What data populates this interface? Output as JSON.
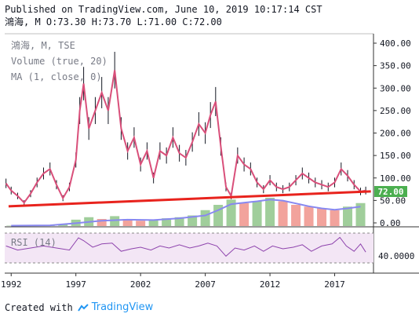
{
  "header": {
    "published": "Published on TradingView.com, June 10, 2019 10:17:14 CST",
    "ohlc": "鴻海, M O:73.30 H:73.70 L:71.00 C:72.00"
  },
  "legend": {
    "symbol": "鴻海, M, TSE",
    "volume": "Volume (true, 20)",
    "ma": "MA (1, close, 0)",
    "rsi": "RSI (14)"
  },
  "footer": {
    "created_with": "Created with",
    "brand": "TradingView"
  },
  "colors": {
    "candle_body": "#d94f7a",
    "candle_wick": "#131722",
    "trendline": "#e8231d",
    "volume_up": "#8fc58a",
    "volume_down": "#f0938b",
    "volume_ma": "#8888f0",
    "rsi_line": "#8e44ad",
    "rsi_band": "#f3e6f5",
    "price_tag": "#4caf50"
  },
  "chart_data": {
    "type": "line",
    "title": "鴻海, M, TSE",
    "last_price_label": "72.00",
    "price_axis": {
      "ticks": [
        "0.00",
        "50.00",
        "100.00",
        "150.00",
        "200.00",
        "250.00",
        "300.00",
        "350.00",
        "400.00"
      ],
      "ylim": [
        0,
        400
      ]
    },
    "x_axis": {
      "ticks": [
        "1992",
        "1997",
        "2002",
        "2007",
        "2012",
        "2017"
      ],
      "xlim": [
        1991.5,
        2020
      ]
    },
    "price_series": {
      "name": "",
      "x": [
        1991.6,
        1992.0,
        1992.5,
        1993.0,
        1993.5,
        1994.0,
        1994.5,
        1995.0,
        1995.5,
        1996.0,
        1996.5,
        1997.0,
        1997.3,
        1997.6,
        1998.0,
        1998.5,
        1999.0,
        1999.5,
        2000.0,
        2000.5,
        2001.0,
        2001.5,
        2002.0,
        2002.5,
        2003.0,
        2003.5,
        2004.0,
        2004.5,
        2005.0,
        2005.5,
        2006.0,
        2006.5,
        2007.0,
        2007.4,
        2007.8,
        2008.2,
        2008.6,
        2009.0,
        2009.5,
        2010.0,
        2010.5,
        2011.0,
        2011.5,
        2012.0,
        2012.5,
        2013.0,
        2013.5,
        2014.0,
        2014.5,
        2015.0,
        2015.5,
        2016.0,
        2016.5,
        2017.0,
        2017.5,
        2018.0,
        2018.5,
        2019.0,
        2019.4
      ],
      "y": [
        88,
        72,
        60,
        45,
        65,
        90,
        110,
        120,
        85,
        55,
        80,
        140,
        250,
        310,
        210,
        250,
        290,
        250,
        340,
        210,
        160,
        190,
        130,
        160,
        100,
        160,
        150,
        190,
        155,
        145,
        180,
        220,
        200,
        240,
        270,
        170,
        80,
        60,
        150,
        130,
        120,
        90,
        75,
        95,
        80,
        75,
        80,
        95,
        110,
        100,
        90,
        85,
        80,
        90,
        120,
        105,
        85,
        70,
        72
      ]
    },
    "trendline": {
      "x": [
        1991.8,
        2019.8
      ],
      "y": [
        37,
        70
      ]
    },
    "volume_series": {
      "name": "",
      "x": [
        1992,
        1993,
        1994,
        1995,
        1996,
        1997,
        1998,
        1999,
        2000,
        2001,
        2002,
        2003,
        2004,
        2005,
        2006,
        2007,
        2008,
        2009,
        2010,
        2011,
        2012,
        2013,
        2014,
        2015,
        2016,
        2017,
        2018,
        2019
      ],
      "y": [
        1,
        1,
        2,
        3,
        5,
        18,
        25,
        20,
        28,
        20,
        15,
        18,
        22,
        25,
        30,
        45,
        60,
        75,
        65,
        70,
        80,
        70,
        60,
        55,
        50,
        45,
        55,
        65
      ]
    },
    "volume_ma": {
      "name": "",
      "x": [
        1992,
        1995,
        1997,
        1999,
        2001,
        2003,
        2005,
        2007,
        2008,
        2009,
        2010,
        2011,
        2012,
        2013,
        2014,
        2015,
        2016,
        2017,
        2018,
        2019
      ],
      "y": [
        1,
        2,
        8,
        15,
        18,
        17,
        22,
        30,
        45,
        62,
        66,
        70,
        75,
        72,
        64,
        56,
        50,
        46,
        50,
        55
      ]
    },
    "rsi_axis": {
      "tick": "40.0000",
      "bands": [
        30,
        70
      ]
    },
    "rsi_series": {
      "name": "",
      "x": [
        1991.6,
        1992.5,
        1993.5,
        1994.5,
        1995.5,
        1996.5,
        1997.2,
        1997.6,
        1998.3,
        1999.0,
        1999.8,
        2000.5,
        2001.3,
        2002.0,
        2002.8,
        2003.5,
        2004.2,
        2005.0,
        2005.8,
        2006.5,
        2007.2,
        2007.9,
        2008.6,
        2009.3,
        2010.0,
        2010.8,
        2011.5,
        2012.2,
        2013.0,
        2013.8,
        2014.5,
        2015.2,
        2016.0,
        2016.8,
        2017.4,
        2017.9,
        2018.5,
        2019.0,
        2019.4
      ],
      "y": [
        55,
        45,
        50,
        55,
        50,
        45,
        75,
        68,
        52,
        60,
        62,
        42,
        48,
        52,
        45,
        55,
        50,
        58,
        50,
        55,
        62,
        55,
        30,
        50,
        45,
        55,
        42,
        55,
        48,
        52,
        58,
        42,
        55,
        60,
        76,
        55,
        42,
        60,
        40
      ]
    }
  }
}
